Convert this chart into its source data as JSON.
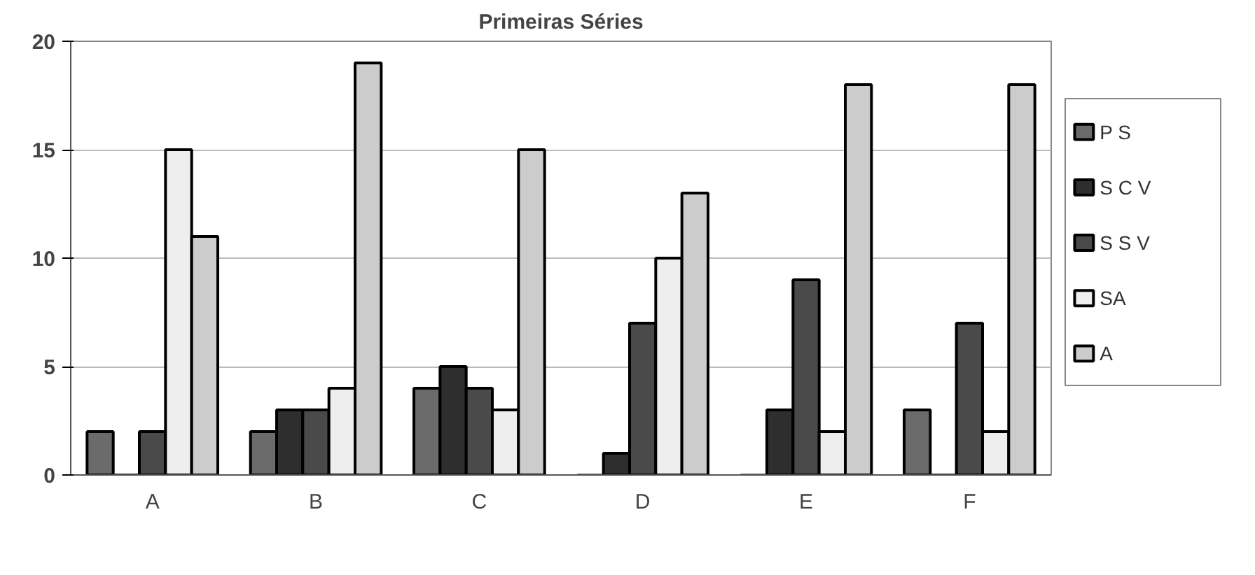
{
  "chart_data": {
    "type": "bar",
    "title": "Primeiras Séries",
    "categories": [
      "A",
      "B",
      "C",
      "D",
      "E",
      "F"
    ],
    "series": [
      {
        "name": "P S",
        "color": "#6b6b6b",
        "values": [
          2,
          2,
          4,
          0,
          0,
          3
        ]
      },
      {
        "name": "S C V",
        "color": "#2e2e2e",
        "values": [
          0,
          3,
          5,
          1,
          3,
          0
        ]
      },
      {
        "name": "S S V",
        "color": "#4a4a4a",
        "values": [
          2,
          3,
          4,
          7,
          9,
          7
        ]
      },
      {
        "name": "SA",
        "color": "#eeeeee",
        "values": [
          15,
          4,
          3,
          10,
          2,
          2
        ]
      },
      {
        "name": "A",
        "color": "#cccccc",
        "values": [
          11,
          19,
          15,
          13,
          18,
          18
        ]
      }
    ],
    "ylim": [
      0,
      20
    ],
    "yticks": [
      0,
      5,
      10,
      15,
      20
    ],
    "grid": "y",
    "legend": "right"
  }
}
